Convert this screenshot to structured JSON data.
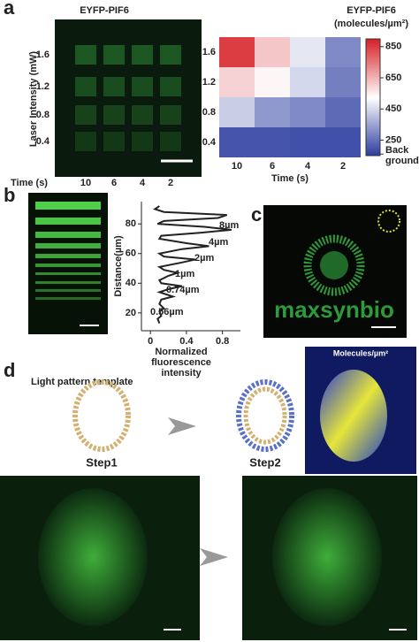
{
  "panels": {
    "a": {
      "letter": "a",
      "image_title": "EYFP-PIF6",
      "y_label": "Laser Intensity (mW)",
      "y_ticks": [
        "1.6",
        "1.2",
        "0.8",
        "0.4"
      ],
      "x_label": "Time (s)",
      "x_ticks": [
        "10",
        "6",
        "4",
        "2"
      ]
    },
    "b": {
      "letter": "b"
    },
    "c": {
      "letter": "c",
      "logo_text": "maxsynbio"
    },
    "d": {
      "letter": "d",
      "template_label": "Light pattern template",
      "step1": "Step1",
      "step2": "Step2",
      "colorbar_label": "Molecules/µm²"
    }
  },
  "chart_data": [
    {
      "type": "heatmap",
      "title": "EYFP-PIF6",
      "subtitle": "(molecules/µm²)",
      "categories": [
        "10",
        "6",
        "4",
        "2"
      ],
      "rows": [
        "1.6",
        "1.2",
        "0.8",
        "0.4"
      ],
      "xlabel": "Time (s)",
      "values": [
        [
          850,
          620,
          480,
          300
        ],
        [
          600,
          540,
          450,
          280
        ],
        [
          430,
          330,
          300,
          240
        ],
        [
          200,
          200,
          190,
          190
        ]
      ],
      "clim": [
        150,
        900
      ],
      "cticks": [
        850,
        650,
        450,
        250,
        {
          "value": 160,
          "label": "Back ground"
        }
      ],
      "colormap": [
        "#2a3b9e",
        "#ffffff",
        "#d61f26"
      ]
    },
    {
      "type": "line",
      "ylabel": "Distance(µm)",
      "xlabel": "Normalized fluorescence intensity",
      "x": [
        0.1,
        0.05,
        0.15,
        0.85,
        0.75,
        0.15,
        0.08,
        0.6,
        0.9,
        0.55,
        0.12,
        0.1,
        0.4,
        0.65,
        0.35,
        0.1,
        0.15,
        0.5,
        0.35,
        0.1,
        0.15,
        0.3,
        0.2,
        0.1,
        0.12,
        0.35,
        0.2,
        0.1,
        0.25,
        0.12,
        0.1,
        0.15,
        0.1,
        0.12,
        0.08,
        0.1
      ],
      "values": [
        92,
        90,
        88,
        86,
        84,
        82,
        80,
        78,
        76,
        74,
        72,
        70,
        67,
        65,
        63,
        60,
        58,
        56,
        54,
        51,
        49,
        47,
        45,
        42,
        40,
        38,
        36,
        34,
        31,
        29,
        26,
        23,
        21,
        18,
        16,
        13
      ],
      "color": "#222222",
      "xlim": [
        -0.1,
        1.0
      ],
      "ylim": [
        8,
        95
      ],
      "xticks": [
        0,
        0.4,
        0.8
      ],
      "yticks": [
        20,
        40,
        60,
        80
      ],
      "annotations": [
        "8µm",
        "4µm",
        "2µm",
        "1µm",
        "0.74µm",
        "0.56µm"
      ]
    }
  ]
}
